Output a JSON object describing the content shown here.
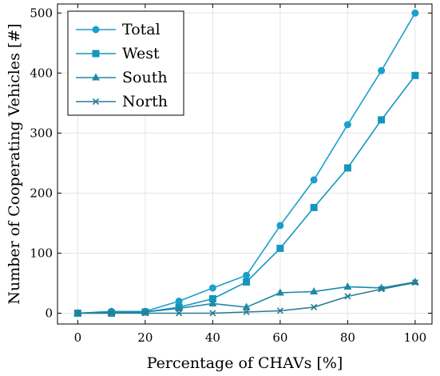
{
  "chart_data": {
    "type": "line",
    "title": "",
    "xlabel": "Percentage of CHAVs [%]",
    "ylabel": "Number of Cooperating Vehicles [#]",
    "xlim": [
      -6,
      105
    ],
    "ylim": [
      -18,
      515
    ],
    "x_ticks": [
      0,
      20,
      40,
      60,
      80,
      100
    ],
    "y_ticks": [
      0,
      100,
      200,
      300,
      400,
      500
    ],
    "grid": true,
    "legend_position": "top-left",
    "x": [
      0,
      10,
      20,
      30,
      40,
      50,
      60,
      70,
      80,
      90,
      100
    ],
    "series": [
      {
        "name": "Total",
        "marker": "circle",
        "color": "#1c9fc9",
        "values": [
          0,
          3,
          3,
          20,
          42,
          63,
          146,
          222,
          314,
          404,
          500
        ]
      },
      {
        "name": "West",
        "marker": "square",
        "color": "#1596be",
        "values": [
          0,
          0,
          2,
          10,
          24,
          52,
          108,
          176,
          242,
          322,
          396
        ]
      },
      {
        "name": "South",
        "marker": "triangle",
        "color": "#1e8aa8",
        "values": [
          0,
          2,
          2,
          8,
          16,
          10,
          34,
          36,
          44,
          42,
          52
        ]
      },
      {
        "name": "North",
        "marker": "x",
        "color": "#2a7b93",
        "values": [
          0,
          0,
          0,
          0,
          0,
          2,
          4,
          10,
          28,
          40,
          51
        ]
      }
    ]
  }
}
